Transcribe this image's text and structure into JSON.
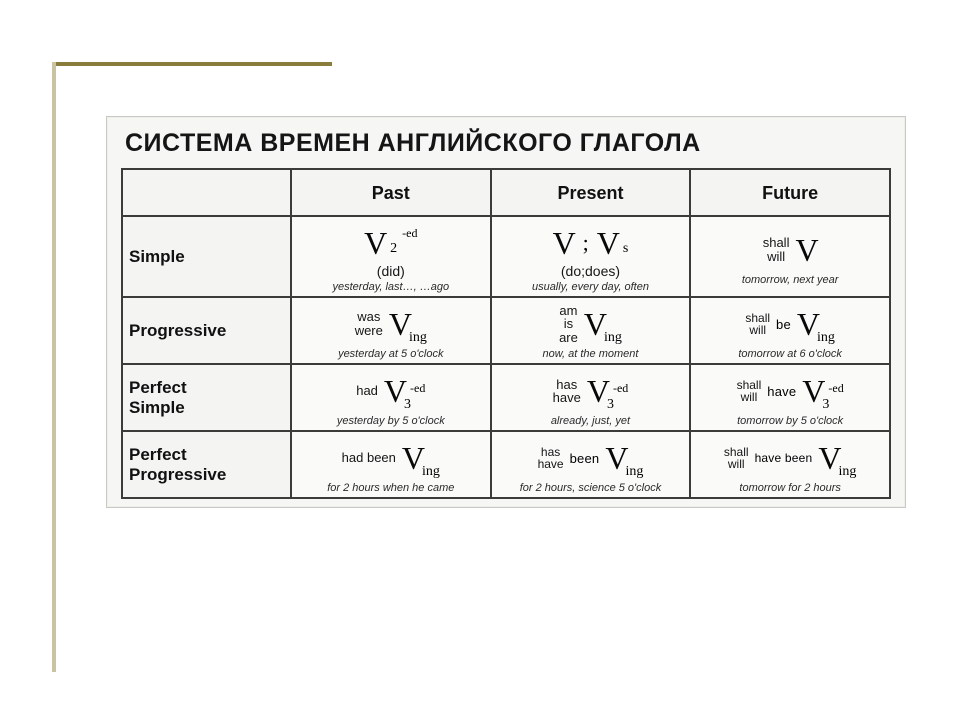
{
  "decor": {
    "rule_color_dark": "#8a7c3a",
    "rule_color_light": "#c9c3a4"
  },
  "title": "СИСТЕМА ВРЕМЕН АНГЛИЙСКОГО ГЛАГОЛА",
  "columns": {
    "past": "Past",
    "present": "Present",
    "future": "Future"
  },
  "rows": {
    "simple": "Simple",
    "progressive": "Progressive",
    "perfect_simple": "Perfect\nSimple",
    "perfect_progressive": "Perfect\nProgressive"
  },
  "cells": {
    "simple": {
      "past": {
        "v": "V",
        "sub": "2",
        "sup": "-ed",
        "paren": "(did)",
        "hint": "yesterday, last…, …ago"
      },
      "present": {
        "v1": "V",
        "sep": ";",
        "v2": "V",
        "v2sub": "s",
        "paren": "(do;does)",
        "hint": "usually, every day, often"
      },
      "future": {
        "aux": "shall\nwill",
        "v": "V",
        "hint": "tomorrow, next year"
      }
    },
    "progressive": {
      "past": {
        "aux": "was\nwere",
        "v": "V",
        "ving": "ing",
        "hint": "yesterday at 5 o'clock"
      },
      "present": {
        "aux": "am\nis\nare",
        "v": "V",
        "ving": "ing",
        "hint": "now, at the moment"
      },
      "future": {
        "aux": "shall\nwill",
        "mid": "be",
        "v": "V",
        "ving": "ing",
        "hint": "tomorrow at 6 o'clock"
      }
    },
    "perfect_simple": {
      "past": {
        "aux": "had",
        "v": "V",
        "sub": "3",
        "sup": "-ed",
        "hint": "yesterday by 5 o'clock"
      },
      "present": {
        "aux": "has\nhave",
        "v": "V",
        "sub": "3",
        "sup": "-ed",
        "hint": "already, just, yet"
      },
      "future": {
        "aux": "shall\nwill",
        "mid": "have",
        "v": "V",
        "sub": "3",
        "sup": "-ed",
        "hint": "tomorrow by 5 o'clock"
      }
    },
    "perfect_progressive": {
      "past": {
        "aux": "had been",
        "v": "V",
        "ving": "ing",
        "hint": "for 2 hours when he came"
      },
      "present": {
        "aux": "has\nhave",
        "mid": "been",
        "v": "V",
        "ving": "ing",
        "hint": "for 2 hours, science 5 o'clock"
      },
      "future": {
        "aux": "shall\nwill",
        "mid": "have been",
        "v": "V",
        "ving": "ing",
        "hint": "tomorrow for 2 hours"
      }
    }
  }
}
